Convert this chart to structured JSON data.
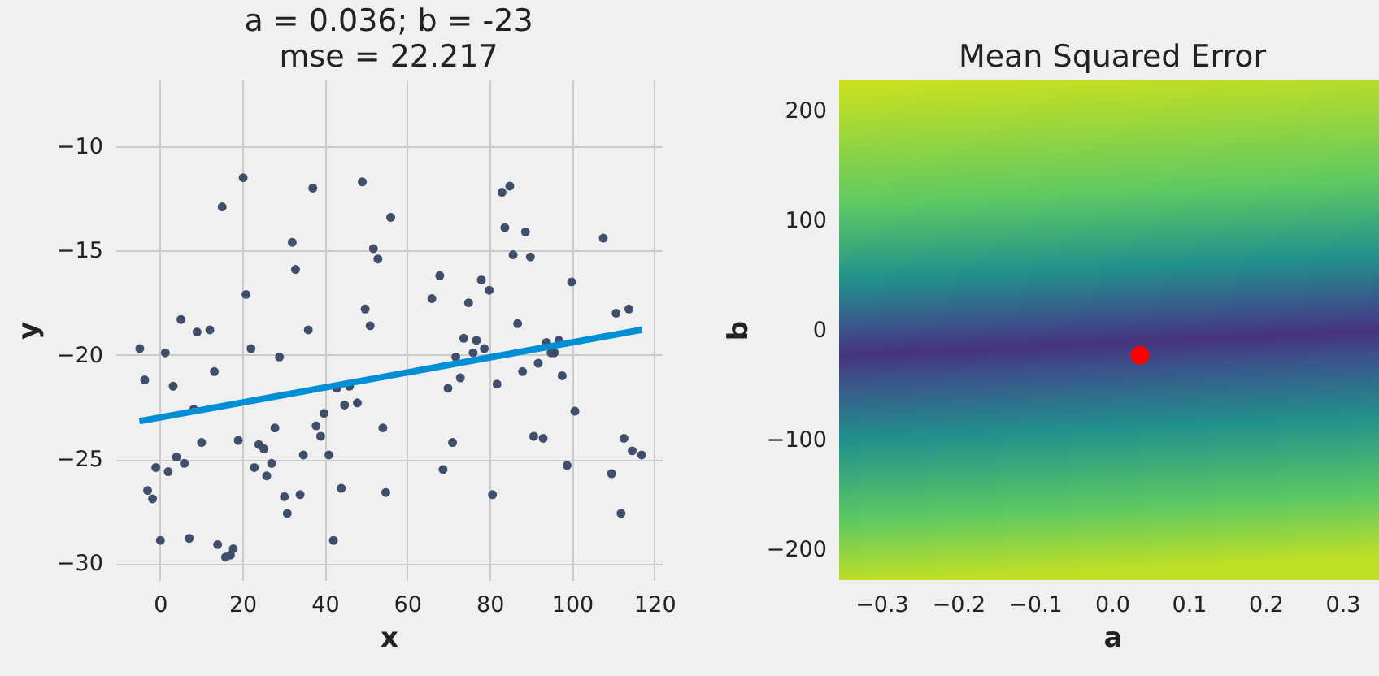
{
  "chart_data": [
    {
      "type": "scatter",
      "title": "a = 0.036; b = -23\nmse = 22.217",
      "xlabel": "x",
      "ylabel": "y",
      "xlim": [
        -10.8,
        121.8
      ],
      "ylim": [
        -30.8,
        -6.8
      ],
      "xticks": [
        0,
        20,
        40,
        60,
        80,
        100,
        120
      ],
      "yticks": [
        {
          "value": -10,
          "label": "−10"
        },
        {
          "value": -15,
          "label": "−15"
        },
        {
          "value": -20,
          "label": "−20"
        },
        {
          "value": -25,
          "label": "−25"
        },
        {
          "value": -30,
          "label": "−30"
        }
      ],
      "grid": true,
      "series": [
        {
          "marker": "circle",
          "color": "#3f4f6b",
          "x": [
            -4.9,
            -3.7,
            -3.0,
            -1.8,
            -1.0,
            0.1,
            1.3,
            2.0,
            3.2,
            4.0,
            5.1,
            5.9,
            7.1,
            8.2,
            9.0,
            10.1,
            12.1,
            13.2,
            14.0,
            15.1,
            15.9,
            17.1,
            17.8,
            19.0,
            20.2,
            20.9,
            22.1,
            22.9,
            24.0,
            25.2,
            25.9,
            27.1,
            27.9,
            29.0,
            30.2,
            30.9,
            32.1,
            32.9,
            34.0,
            34.8,
            36.0,
            37.1,
            37.9,
            39.0,
            39.8,
            41.0,
            42.1,
            42.9,
            44.0,
            44.8,
            46.0,
            47.9,
            49.1,
            49.8,
            51.0,
            51.8,
            52.9,
            54.1,
            54.8,
            56.0,
            66.0,
            67.9,
            68.7,
            69.9,
            71.0,
            71.8,
            72.9,
            73.7,
            74.9,
            76.0,
            76.8,
            78.0,
            78.7,
            79.9,
            80.7,
            81.8,
            83.0,
            83.7,
            84.9,
            85.7,
            86.8,
            88.0,
            88.7,
            89.9,
            90.7,
            91.8,
            93.0,
            93.8,
            94.9,
            95.7,
            96.8,
            97.6,
            98.8,
            99.9,
            100.7,
            107.6,
            109.6,
            110.7,
            111.9,
            112.6,
            113.8,
            114.6,
            116.9
          ],
          "values": [
            -19.7,
            -21.2,
            -26.5,
            -26.9,
            -25.4,
            -28.9,
            -19.9,
            -25.6,
            -21.5,
            -24.9,
            -18.3,
            -25.2,
            -28.8,
            -22.6,
            -18.9,
            -24.2,
            -18.8,
            -20.8,
            -29.1,
            -12.9,
            -29.7,
            -29.6,
            -29.3,
            -24.1,
            -11.5,
            -17.1,
            -19.7,
            -25.4,
            -24.3,
            -24.5,
            -25.8,
            -25.2,
            -23.5,
            -20.1,
            -26.8,
            -27.6,
            -14.6,
            -15.9,
            -26.7,
            -24.8,
            -18.8,
            -12.0,
            -23.4,
            -23.9,
            -22.8,
            -24.8,
            -28.9,
            -21.6,
            -26.4,
            -22.4,
            -21.5,
            -22.3,
            -11.7,
            -17.8,
            -18.6,
            -14.9,
            -15.4,
            -23.5,
            -26.6,
            -13.4,
            -17.3,
            -16.2,
            -25.5,
            -21.6,
            -24.2,
            -20.1,
            -21.1,
            -19.2,
            -17.5,
            -19.9,
            -19.3,
            -16.4,
            -19.7,
            -16.9,
            -26.7,
            -21.4,
            -12.2,
            -13.9,
            -11.9,
            -15.2,
            -18.5,
            -20.8,
            -14.1,
            -15.3,
            -23.9,
            -20.4,
            -24.0,
            -19.4,
            -19.9,
            -19.9,
            -19.3,
            -21.0,
            -25.3,
            -16.5,
            -22.7,
            -14.4,
            -25.7,
            -18.0,
            -27.6,
            -24.0,
            -17.8,
            -24.6,
            -24.8
          ]
        },
        {
          "type": "line",
          "color": "#008fd5",
          "x": [
            -5,
            117
          ],
          "values": [
            -23.18,
            -18.79
          ]
        }
      ]
    },
    {
      "type": "scatter",
      "title": "Mean Squared Error",
      "xlabel": "a",
      "ylabel": "b",
      "xlim": [
        -0.355,
        0.356
      ],
      "ylim": [
        -228,
        228
      ],
      "xticks": [
        {
          "value": -0.3,
          "label": "−0.3"
        },
        {
          "value": -0.2,
          "label": "−0.2"
        },
        {
          "value": -0.1,
          "label": "−0.1"
        },
        {
          "value": 0,
          "label": "0.0"
        },
        {
          "value": 0.1,
          "label": "0.1"
        },
        {
          "value": 0.2,
          "label": "0.2"
        },
        {
          "value": 0.3,
          "label": "0.3"
        }
      ],
      "yticks": [
        {
          "value": -200,
          "label": "−200"
        },
        {
          "value": -100,
          "label": "−100"
        },
        0,
        100,
        200
      ],
      "marker": "circle",
      "series": [
        {
          "color": "#ff0000",
          "x": [
            0.036
          ],
          "values": [
            -23
          ]
        }
      ]
    }
  ]
}
